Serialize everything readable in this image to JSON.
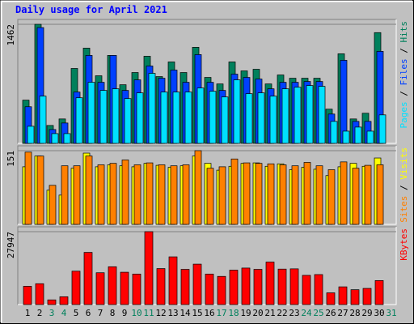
{
  "chart_data": {
    "type": "bar",
    "title": "Daily usage for April 2021",
    "categories": [
      "1",
      "2",
      "3",
      "4",
      "5",
      "6",
      "7",
      "8",
      "9",
      "10",
      "11",
      "12",
      "13",
      "14",
      "15",
      "16",
      "17",
      "18",
      "19",
      "20",
      "21",
      "22",
      "23",
      "24",
      "25",
      "26",
      "27",
      "28",
      "29",
      "30",
      "31"
    ],
    "category_colors": [
      "#000000",
      "#000000",
      "#00805c",
      "#00805c",
      "#000000",
      "#000000",
      "#000000",
      "#000000",
      "#000000",
      "#00805c",
      "#00805c",
      "#000000",
      "#000000",
      "#000000",
      "#000000",
      "#000000",
      "#00805c",
      "#00805c",
      "#000000",
      "#000000",
      "#000000",
      "#000000",
      "#000000",
      "#00805c",
      "#00805c",
      "#000000",
      "#000000",
      "#000000",
      "#000000",
      "#000000",
      "#00805c"
    ],
    "legend_separator": " / ",
    "panels": [
      {
        "ylim": [
          0,
          1462
        ],
        "yticks": [
          1462
        ],
        "series": [
          {
            "name": "Hits",
            "color": "#00805c",
            "values": [
              531,
              1462,
              220,
              300,
              920,
              1170,
              830,
              1080,
              720,
              870,
              1070,
              820,
              1000,
              870,
              1180,
              810,
              730,
              1000,
              890,
              910,
              730,
              840,
              800,
              800,
              800,
              420,
              1100,
              300,
              370,
              1360,
              0
            ]
          },
          {
            "name": "Files",
            "color": "#0040ff",
            "values": [
              450,
              1422,
              170,
              250,
              630,
              1080,
              750,
              1080,
              650,
              780,
              950,
              800,
              900,
              750,
              1090,
              750,
              650,
              850,
              810,
              790,
              670,
              750,
              750,
              760,
              760,
              360,
              1020,
              270,
              270,
              1130,
              0
            ]
          },
          {
            "name": "Pages",
            "color": "#00e0ff",
            "values": [
              210,
              580,
              120,
              120,
              560,
              750,
              650,
              670,
              550,
              620,
              860,
              630,
              630,
              630,
              680,
              640,
              570,
              780,
              610,
              620,
              580,
              670,
              690,
              710,
              700,
              270,
              150,
              200,
              150,
              350,
              0
            ]
          }
        ]
      },
      {
        "ylim": [
          0,
          151
        ],
        "yticks": [
          151
        ],
        "series": [
          {
            "name": "Visits",
            "color": "#ffff00",
            "values": [
              118,
              140,
              70,
              60,
              115,
              146,
              118,
              122,
              120,
              118,
              125,
              121,
              117,
              120,
              140,
              125,
              111,
              119,
              125,
              126,
              119,
              124,
              112,
              117,
              113,
              100,
              118,
              125,
              119,
              136,
              0
            ]
          },
          {
            "name": "Sites",
            "color": "#ff8000",
            "values": [
              148,
              140,
              80,
              120,
              120,
              140,
              122,
              125,
              132,
              122,
              126,
              122,
              120,
              122,
              151,
              115,
              118,
              134,
              126,
              125,
              124,
              122,
              120,
              127,
              120,
              112,
              128,
              115,
              121,
              122,
              0
            ]
          }
        ]
      },
      {
        "ylim": [
          0,
          27947
        ],
        "yticks": [
          27947
        ],
        "series": [
          {
            "name": "KBytes",
            "color": "#ff0000",
            "values": [
              7000,
              8000,
              1800,
              3000,
              12800,
              20000,
              12200,
              14500,
              12400,
              11700,
              27947,
              13800,
              18300,
              13500,
              15500,
              11700,
              10800,
              13200,
              14000,
              13500,
              16300,
              13600,
              13700,
              11200,
              11500,
              4500,
              6800,
              5700,
              6200,
              9200,
              0
            ]
          }
        ]
      }
    ]
  }
}
